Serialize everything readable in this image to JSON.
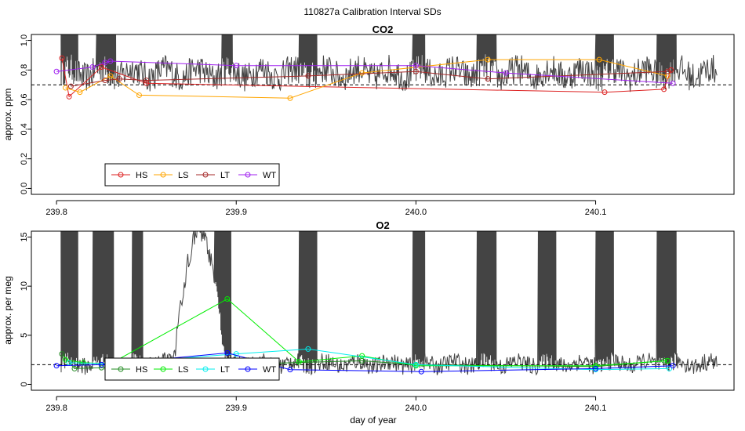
{
  "figure_title": "110827a   Calibration Interval SDs",
  "shared_xlabel": "day of year",
  "colors": {
    "HS_co2": "#dd2222",
    "LS_co2": "#ffa500",
    "LT_co2": "#a52a2a",
    "WT_co2": "#a020f0",
    "HS_o2": "#228b22",
    "LS_o2": "#00ee00",
    "LT_o2": "#00eeee",
    "WT_o2": "#0000ff",
    "trace": "#444444",
    "ref": "#000000"
  },
  "chart_data": [
    {
      "type": "line",
      "title": "CO2",
      "xlabel": "",
      "ylabel": "approx. ppm",
      "xlim": [
        239.786,
        240.177
      ],
      "ylim": [
        -0.04,
        1.04
      ],
      "xticks": [
        "239.8",
        "239.9",
        "240.0",
        "240.1"
      ],
      "xtick_values": [
        239.8,
        239.9,
        240.0,
        240.1
      ],
      "yticks": [
        "0.0",
        "0.2",
        "0.4",
        "0.6",
        "0.8",
        "1.0"
      ],
      "ytick_values": [
        0.0,
        0.2,
        0.4,
        0.6,
        0.8,
        1.0
      ],
      "reference_line": 0.7,
      "legend": {
        "entries": [
          "HS",
          "LS",
          "LT",
          "WT"
        ],
        "position": "bottom-left"
      },
      "series": [
        {
          "name": "HS",
          "x": [
            239.803,
            239.807,
            239.825,
            239.85,
            240.105,
            240.138,
            240.142
          ],
          "y": [
            0.88,
            0.62,
            0.82,
            0.71,
            0.65,
            0.67,
            0.8
          ]
        },
        {
          "name": "LS",
          "x": [
            239.805,
            239.813,
            239.83,
            239.846,
            239.93,
            239.97,
            240.04,
            240.102,
            240.14
          ],
          "y": [
            0.68,
            0.65,
            0.76,
            0.63,
            0.61,
            0.78,
            0.87,
            0.87,
            0.76
          ]
        },
        {
          "name": "LT",
          "x": [
            239.808,
            239.827,
            239.835,
            239.85,
            239.94,
            240.0,
            240.04,
            240.14
          ],
          "y": [
            0.69,
            0.73,
            0.74,
            0.73,
            0.76,
            0.79,
            0.74,
            0.79
          ]
        },
        {
          "name": "WT",
          "x": [
            239.8,
            239.82,
            239.827,
            239.83,
            239.9,
            240.0,
            240.05,
            240.143
          ],
          "y": [
            0.79,
            0.82,
            0.85,
            0.86,
            0.83,
            0.83,
            0.78,
            0.71
          ]
        }
      ],
      "trace": {
        "name": "raw signal",
        "base": 0.78,
        "amplitude": 0.1,
        "spike_intervals": [
          [
            239.802,
            239.812
          ],
          [
            239.822,
            239.833
          ],
          [
            239.892,
            239.898
          ],
          [
            239.935,
            239.945
          ],
          [
            239.998,
            240.005
          ],
          [
            240.034,
            240.045
          ],
          [
            240.1,
            240.11
          ],
          [
            240.134,
            240.145
          ],
          [
            240.17,
            240.175
          ]
        ]
      }
    },
    {
      "type": "line",
      "title": "O2",
      "xlabel": "day of year",
      "ylabel": "approx. per meg",
      "xlim": [
        239.786,
        240.177
      ],
      "ylim": [
        -0.6,
        15.6
      ],
      "xticks": [
        "239.8",
        "239.9",
        "240.0",
        "240.1"
      ],
      "xtick_values": [
        239.8,
        239.9,
        240.0,
        240.1
      ],
      "yticks": [
        "0",
        "5",
        "10",
        "15"
      ],
      "ytick_values": [
        0,
        5,
        10,
        15
      ],
      "reference_line": 2.0,
      "legend": {
        "entries": [
          "HS",
          "LS",
          "LT",
          "WT"
        ],
        "position": "bottom-left"
      },
      "series": [
        {
          "name": "HS",
          "x": [
            239.803,
            239.81,
            239.825,
            239.85,
            239.97,
            240.0,
            240.1,
            240.138
          ],
          "y": [
            3.1,
            1.6,
            1.7,
            1.8,
            2.4,
            2.0,
            1.8,
            2.4
          ]
        },
        {
          "name": "LS",
          "x": [
            239.805,
            239.815,
            239.83,
            239.895,
            239.935,
            239.97,
            240.0,
            240.1,
            240.14
          ],
          "y": [
            2.5,
            2.2,
            2.1,
            8.7,
            2.3,
            2.9,
            1.9,
            1.9,
            2.4
          ]
        },
        {
          "name": "LT",
          "x": [
            239.807,
            239.83,
            239.9,
            239.94,
            240.0,
            240.1,
            240.141
          ],
          "y": [
            2.2,
            2.1,
            3.1,
            3.6,
            2.0,
            1.5,
            1.6
          ]
        },
        {
          "name": "WT",
          "x": [
            239.8,
            239.825,
            239.895,
            239.93,
            240.003,
            240.1,
            240.143
          ],
          "y": [
            1.9,
            2.0,
            3.2,
            1.5,
            1.3,
            1.6,
            1.9
          ]
        }
      ],
      "trace": {
        "name": "raw signal",
        "base": 2.1,
        "amplitude": 0.9,
        "spike_intervals": [
          [
            239.802,
            239.812
          ],
          [
            239.82,
            239.832
          ],
          [
            239.842,
            239.848
          ],
          [
            239.888,
            239.897
          ],
          [
            239.935,
            239.945
          ],
          [
            239.998,
            240.005
          ],
          [
            240.034,
            240.045
          ],
          [
            240.068,
            240.078
          ],
          [
            240.1,
            240.11
          ],
          [
            240.134,
            240.145
          ]
        ],
        "bump": {
          "from": 239.865,
          "to": 239.885,
          "peak": 15.5
        }
      }
    }
  ]
}
